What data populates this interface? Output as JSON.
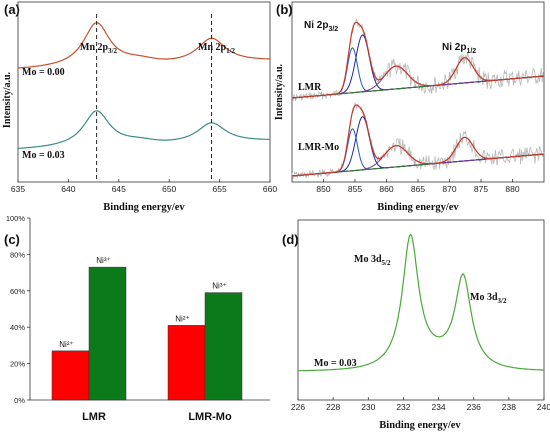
{
  "chart_data": [
    {
      "panel": "(a)",
      "type": "line",
      "xlabel": "Binding energy/ev",
      "ylabel": "Intensity/a.u.",
      "xlim": [
        635,
        660
      ],
      "xticks": [
        "635",
        "640",
        "645",
        "650",
        "655",
        "660"
      ],
      "peaks": [
        {
          "label": "Mn 2p",
          "sub": "3/2",
          "x": 642.8
        },
        {
          "label": "Mn 2p",
          "sub": "1/2",
          "x": 654.2
        }
      ],
      "series": [
        {
          "name": "Mo = 0.00",
          "color": "#c8502e"
        },
        {
          "name": "Mo = 0.03",
          "color": "#3a8c86"
        }
      ]
    },
    {
      "panel": "(b)",
      "type": "line",
      "xlabel": "Binding energy/ev",
      "ylabel": "Intensity/a.u.",
      "xlim": [
        845,
        885
      ],
      "xticks": [
        "850",
        "855",
        "860",
        "865",
        "870",
        "875",
        "880"
      ],
      "peaks": [
        {
          "label": "Ni 2p",
          "sub": "3/2",
          "x": 855.2
        },
        {
          "label": "Ni 2p",
          "sub": "1/2",
          "x": 872.4
        }
      ],
      "series": [
        {
          "name": "LMR"
        },
        {
          "name": "LMR-Mo"
        }
      ]
    },
    {
      "panel": "(c)",
      "type": "bar",
      "categories": [
        "LMR",
        "LMR-Mo"
      ],
      "ylim": [
        0,
        100
      ],
      "yticks": [
        "0%",
        "20%",
        "40%",
        "60%",
        "80%",
        "100%"
      ],
      "series": [
        {
          "name": "Ni²⁺",
          "color": "#ff0000",
          "values": [
            27,
            41
          ]
        },
        {
          "name": "Ni³⁺",
          "color": "#0a7a1a",
          "values": [
            73,
            59
          ]
        }
      ]
    },
    {
      "panel": "(d)",
      "type": "line",
      "xlabel": "Binding energy/ev",
      "ylabel": "Intensity/a.u.",
      "xlim": [
        226,
        240
      ],
      "xticks": [
        "226",
        "228",
        "230",
        "232",
        "234",
        "236",
        "238",
        "240"
      ],
      "peaks": [
        {
          "label": "Mo 3d",
          "sub": "5/2",
          "x": 232.4
        },
        {
          "label": "Mo 3d",
          "sub": "3/2",
          "x": 235.4
        }
      ],
      "annotation": "Mo = 0.03",
      "series": [
        {
          "name": "Mo = 0.03",
          "color": "#4aa83a"
        }
      ]
    }
  ]
}
